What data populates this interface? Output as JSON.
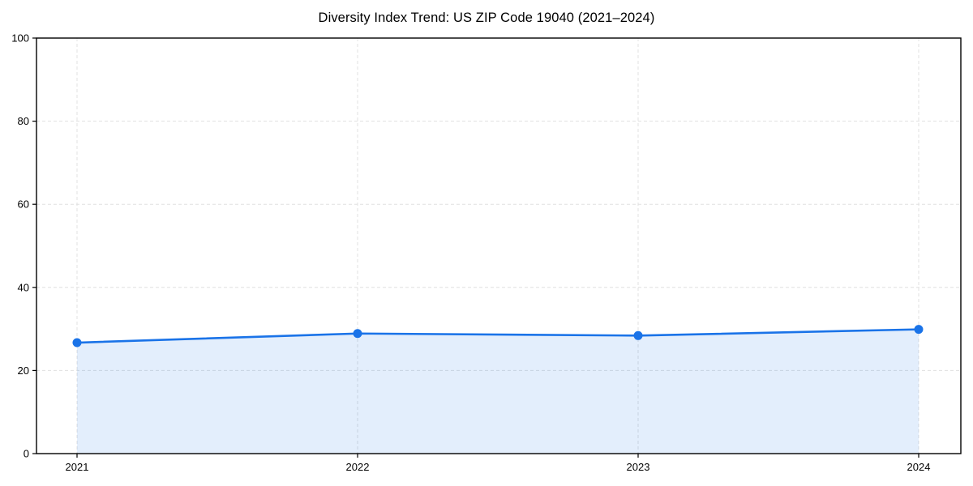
{
  "page": {
    "background": "#ffffff"
  },
  "chart_data": {
    "type": "line",
    "title": "Diversity Index Trend: US ZIP Code 19040 (2021–2024)",
    "x": [
      "2021",
      "2022",
      "2023",
      "2024"
    ],
    "series": [
      {
        "name": "Diversity Index",
        "values": [
          26.7,
          28.9,
          28.4,
          29.9
        ]
      }
    ],
    "xlabel": "",
    "ylabel": "",
    "ylim": [
      0,
      100
    ],
    "yticks": [
      0,
      20,
      40,
      60,
      80,
      100
    ],
    "grid": "dashed-both-axes",
    "legend": "none",
    "area_fill_to_zero": true,
    "marker": "circle",
    "colors": {
      "line": "#1a73e8",
      "marker": "#1a73e8",
      "area": "rgba(26,115,232,0.12)",
      "grid": "#e0e0e0",
      "axis": "#000000",
      "tick_text": "#000000",
      "title_text": "#000000"
    }
  }
}
